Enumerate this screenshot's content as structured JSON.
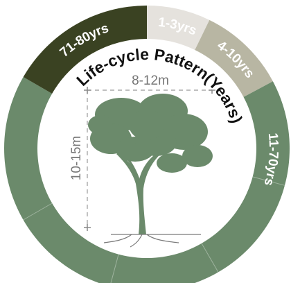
{
  "title": "Life-cycle Pattern(Years)",
  "stages": [
    {
      "label": "1-3yrs"
    },
    {
      "label": "4-10yrs"
    },
    {
      "label": "11-70yrs"
    },
    {
      "label": "71-80yrs"
    }
  ],
  "dimensions": {
    "width": "8-12m",
    "height": "10-15m"
  }
}
